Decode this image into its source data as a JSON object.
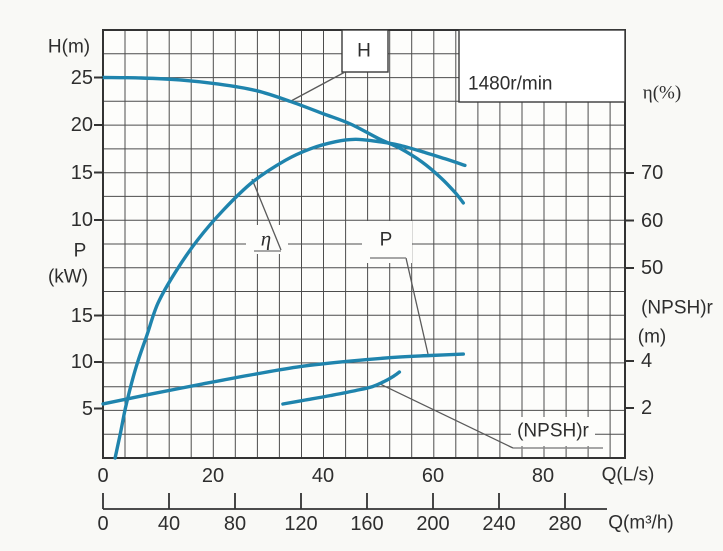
{
  "figure": {
    "background": "#f9f9f6",
    "curve_color": "#1f84ad",
    "grid_color": "#4d4d4d",
    "border_color": "#333333",
    "text_color": "#2e2e2e",
    "leader_color": "#5a5a5a",
    "underline_color": "#8a8a8a"
  },
  "rpm_label": "1480r/min",
  "axis_titles": {
    "head": "H(m)",
    "power_line1": "P",
    "power_line2": "(kW)",
    "efficiency": "η(%)",
    "npsh_line1": "(NPSH)r",
    "npsh_line2": "(m)",
    "flow_ls": "Q(L/s)",
    "flow_m3h": "Q(m³/h)"
  },
  "curve_labels": {
    "head": "H",
    "efficiency": "η",
    "power": "P",
    "npsh": "(NPSH)r"
  },
  "chart_data": {
    "type": "line",
    "title": "Centrifugal pump performance curves",
    "speed": "1480r/min",
    "grid": true,
    "x_axes": [
      {
        "label": "Q(L/s)",
        "ticks": [
          0,
          20,
          40,
          60,
          80
        ],
        "range": [
          0,
          94
        ]
      },
      {
        "label": "Q(m³/h)",
        "ticks": [
          0,
          40,
          80,
          120,
          160,
          200,
          240,
          280
        ],
        "range": [
          0,
          316
        ]
      }
    ],
    "y_axes": [
      {
        "label": "H(m)",
        "side": "left",
        "ticks": [
          25,
          20,
          15,
          10
        ],
        "range_at_grid": [
          12,
          30
        ]
      },
      {
        "label": "P(kW)",
        "side": "left",
        "ticks": [
          15,
          10,
          5
        ],
        "range_at_grid": [
          0,
          20
        ]
      },
      {
        "label": "η(%)",
        "side": "right",
        "ticks": [
          70,
          60,
          50
        ],
        "range_at_grid": [
          0,
          100
        ]
      },
      {
        "label": "(NPSH)r (m)",
        "side": "right",
        "ticks": [
          4,
          2
        ],
        "range_at_grid": [
          0,
          18
        ]
      }
    ],
    "series": [
      {
        "name": "H",
        "units": "m",
        "y_axis": 0,
        "x": [
          0,
          7,
          14,
          21,
          28,
          34,
          40,
          45,
          50,
          54,
          58,
          61.5,
          64,
          65.5
        ],
        "y": [
          25.0,
          24.95,
          24.75,
          24.3,
          23.6,
          22.5,
          21.2,
          20.1,
          18.6,
          17.55,
          16.1,
          14.4,
          12.9,
          11.8
        ]
      },
      {
        "name": "η",
        "units": "%",
        "y_axis": 2,
        "x": [
          2.2,
          3.1,
          4.0,
          5.1,
          6.3,
          8.0,
          10.0,
          13.2,
          17.2,
          21.9,
          27.2,
          33.2,
          37.7,
          42.3,
          45.9,
          49.5,
          53.7,
          58.6,
          62.2,
          65.8
        ],
        "y": [
          10.0,
          14.8,
          20.1,
          25.4,
          30.2,
          35.9,
          42.6,
          49.2,
          55.9,
          62.2,
          68.1,
          72.7,
          75.1,
          76.6,
          77.1,
          76.7,
          75.9,
          74.3,
          73.0,
          71.6
        ]
      },
      {
        "name": "P",
        "units": "kW",
        "y_axis": 1,
        "x": [
          0,
          8.7,
          17.8,
          26.8,
          35.9,
          45.0,
          54.1,
          59.5,
          65.5
        ],
        "y": [
          5.5,
          6.55,
          7.6,
          8.6,
          9.5,
          10.1,
          10.55,
          10.7,
          10.85
        ]
      },
      {
        "name": "(NPSH)r",
        "units": "m",
        "y_axis": 3,
        "x": [
          32.7,
          36.8,
          41.4,
          45.9,
          49.0,
          51.3,
          53.0,
          53.9
        ],
        "y": [
          2.17,
          2.34,
          2.53,
          2.74,
          2.91,
          3.15,
          3.38,
          3.53
        ]
      }
    ],
    "legend_position": "none",
    "annotations": [
      "H",
      "η",
      "P",
      "(NPSH)r",
      "1480r/min"
    ]
  }
}
